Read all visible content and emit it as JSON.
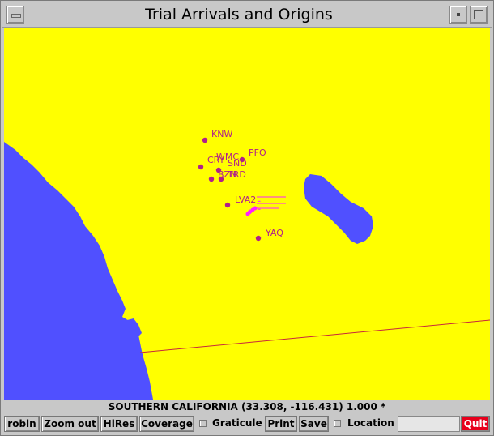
{
  "window": {
    "title": "Trial Arrivals and Origins"
  },
  "map": {
    "colors": {
      "land": "#ffff00",
      "water": "#5050ff",
      "border": "#c8283c",
      "station": "#b0208a",
      "event": "#ff20ff"
    },
    "stations": [
      {
        "code": "KNW"
      },
      {
        "code": "PFO"
      },
      {
        "code": "CRY"
      },
      {
        "code": "WMC"
      },
      {
        "code": "SND"
      },
      {
        "code": "BZN"
      },
      {
        "code": "TRD"
      },
      {
        "code": "LVA2"
      },
      {
        "code": "YAQ"
      }
    ],
    "event_labels": [
      "...",
      "..."
    ]
  },
  "status": {
    "text": "SOUTHERN CALIFORNIA (33.308, -116.431)   1.000 *"
  },
  "toolbar": {
    "robin": "robin",
    "zoom_out": "Zoom out",
    "hires": "HiRes",
    "coverage": "Coverage",
    "graticule": "Graticule",
    "print": "Print",
    "save": "Save",
    "location": "Location",
    "location_value": "",
    "quit": "Quit"
  }
}
